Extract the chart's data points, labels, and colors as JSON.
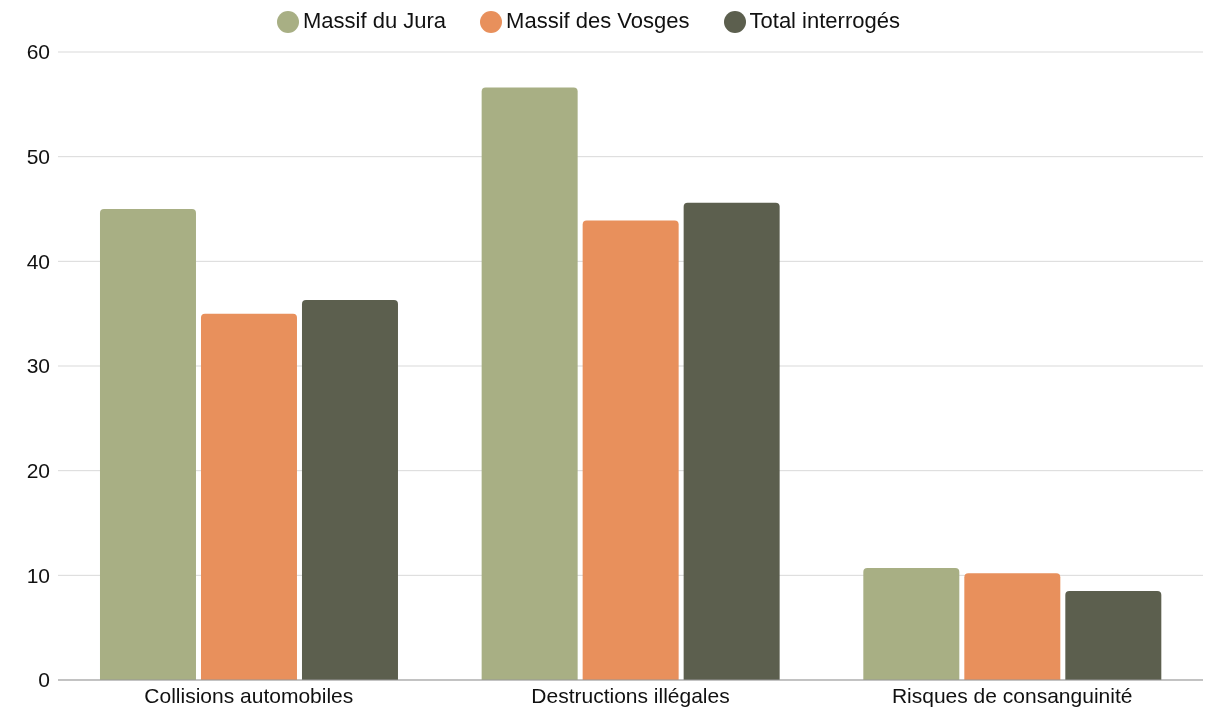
{
  "chart_data": {
    "type": "bar",
    "categories": [
      "Collisions automobiles",
      "Destructions illégales",
      "Risques de consanguinité"
    ],
    "series": [
      {
        "name": "Massif du Jura",
        "color": "#a8af84",
        "values": [
          45.0,
          56.6,
          10.7
        ]
      },
      {
        "name": "Massif des Vosges",
        "color": "#e8905c",
        "values": [
          35.0,
          43.9,
          10.2
        ]
      },
      {
        "name": "Total interrogés",
        "color": "#5c5f4e",
        "values": [
          36.3,
          45.6,
          8.5
        ]
      }
    ],
    "ylim": [
      0,
      60
    ],
    "yticks": [
      0,
      10,
      20,
      30,
      40,
      50,
      60
    ],
    "grid": "y",
    "legend": "top"
  }
}
